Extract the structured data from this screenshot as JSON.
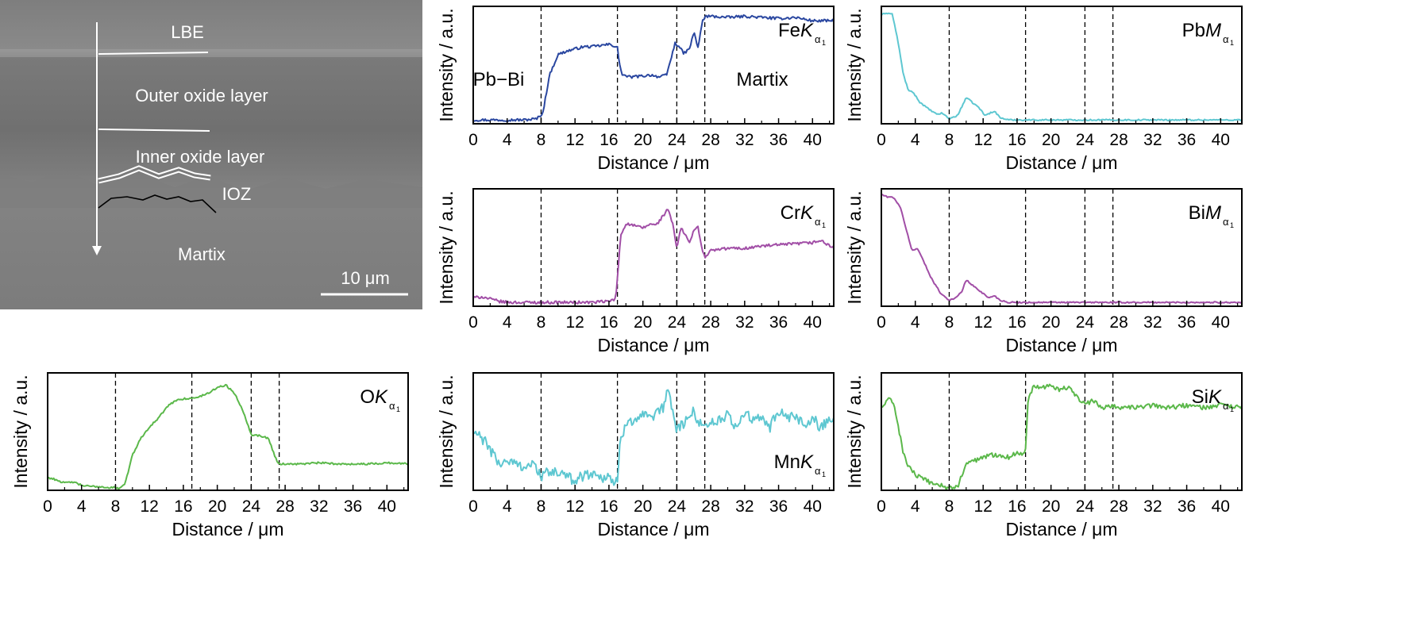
{
  "sem": {
    "labels": {
      "lbe": "LBE",
      "outer": "Outer oxide layer",
      "inner": "Inner oxide layer",
      "ioz": "IOZ",
      "matrix": "Martix"
    },
    "scalebar": "10 μm"
  },
  "colors": {
    "Fe": "#2a47a0",
    "Pb": "#5ec7d1",
    "Cr": "#a14ea6",
    "Bi": "#a14ea6",
    "O": "#5bb84a",
    "Mn": "#5ec7d1",
    "Si": "#5bb84a"
  },
  "chart_data": [
    {
      "id": "Fe",
      "type": "line",
      "label_el": "Fe",
      "label_k": "K",
      "label_sub": "α",
      "xlabel": "Distance / μm",
      "ylabel": "Intensity / a.u.",
      "xlim": [
        0,
        42.5
      ],
      "ylim": [
        0,
        1
      ],
      "xticks": [
        0,
        4,
        8,
        12,
        16,
        20,
        24,
        28,
        32,
        36,
        40
      ],
      "vlines": [
        8,
        17,
        24,
        27.3
      ],
      "annotations": [
        "Pb−Bi",
        "Martix"
      ],
      "x": [
        0,
        2,
        4,
        6,
        7.5,
        8.2,
        9,
        10,
        11,
        12,
        13,
        14,
        15,
        16,
        17,
        17.2,
        17.6,
        18.5,
        20,
        21,
        22,
        22.8,
        23.3,
        23.8,
        24.2,
        24.8,
        25.5,
        26,
        26.5,
        27,
        27.4,
        28,
        30,
        32,
        34,
        36,
        38,
        40,
        42
      ],
      "y": [
        0.02,
        0.02,
        0.02,
        0.02,
        0.03,
        0.08,
        0.42,
        0.6,
        0.63,
        0.65,
        0.67,
        0.67,
        0.68,
        0.69,
        0.67,
        0.52,
        0.42,
        0.4,
        0.41,
        0.42,
        0.4,
        0.42,
        0.56,
        0.7,
        0.68,
        0.61,
        0.65,
        0.8,
        0.66,
        0.89,
        0.94,
        0.94,
        0.93,
        0.94,
        0.93,
        0.92,
        0.93,
        0.9,
        0.9
      ],
      "noise": 0.012
    },
    {
      "id": "Pb",
      "type": "line",
      "label_el": "Pb",
      "label_k": "M",
      "label_sub": "α",
      "xlabel": "Distance / μm",
      "ylabel": "Intensity / a.u.",
      "xlim": [
        0,
        42.5
      ],
      "ylim": [
        0,
        1
      ],
      "xticks": [
        0,
        4,
        8,
        12,
        16,
        20,
        24,
        28,
        32,
        36,
        40
      ],
      "vlines": [
        8,
        17,
        24,
        27.3
      ],
      "annotations": [],
      "x": [
        0,
        0.5,
        1.3,
        2,
        2.6,
        3.2,
        3.8,
        4.5,
        5.5,
        6.5,
        7.2,
        8,
        9,
        10,
        10.8,
        11.5,
        12.2,
        12.8,
        13.3,
        14,
        15,
        17,
        20,
        24,
        28,
        32,
        36,
        40,
        42.5
      ],
      "y": [
        0.95,
        0.97,
        0.96,
        0.7,
        0.42,
        0.28,
        0.26,
        0.18,
        0.12,
        0.07,
        0.08,
        0.03,
        0.06,
        0.22,
        0.17,
        0.13,
        0.06,
        0.08,
        0.1,
        0.04,
        0.02,
        0.02,
        0.02,
        0.02,
        0.02,
        0.02,
        0.02,
        0.02,
        0.02
      ],
      "noise": 0.006
    },
    {
      "id": "Cr",
      "type": "line",
      "label_el": "Cr",
      "label_k": "K",
      "label_sub": "α",
      "xlabel": "Distance / μm",
      "ylabel": "Intensity / a.u.",
      "xlim": [
        0,
        42.5
      ],
      "ylim": [
        0,
        1
      ],
      "xticks": [
        0,
        4,
        8,
        12,
        16,
        20,
        24,
        28,
        32,
        36,
        40
      ],
      "vlines": [
        8,
        17,
        24,
        27.3
      ],
      "annotations": [],
      "x": [
        0,
        1,
        2,
        3,
        4,
        6,
        8,
        10,
        12,
        14,
        16,
        16.8,
        17.4,
        18,
        19,
        20,
        21,
        21.5,
        22,
        22.5,
        23,
        23.5,
        24,
        24.5,
        25,
        25.5,
        26,
        26.5,
        27,
        27.3,
        28,
        30,
        32,
        34,
        36,
        38,
        40,
        41,
        42
      ],
      "y": [
        0.06,
        0.07,
        0.05,
        0.03,
        0.02,
        0.02,
        0.02,
        0.02,
        0.02,
        0.02,
        0.03,
        0.05,
        0.62,
        0.72,
        0.7,
        0.68,
        0.72,
        0.7,
        0.75,
        0.8,
        0.85,
        0.72,
        0.5,
        0.68,
        0.62,
        0.55,
        0.65,
        0.7,
        0.48,
        0.42,
        0.48,
        0.5,
        0.5,
        0.52,
        0.53,
        0.54,
        0.55,
        0.57,
        0.52
      ],
      "noise": 0.013
    },
    {
      "id": "Bi",
      "type": "line",
      "label_el": "Bi",
      "label_k": "M",
      "label_sub": "α",
      "xlabel": "Distance / μm",
      "ylabel": "Intensity / a.u.",
      "xlim": [
        0,
        42.5
      ],
      "ylim": [
        0,
        1
      ],
      "xticks": [
        0,
        4,
        8,
        12,
        16,
        20,
        24,
        28,
        32,
        36,
        40
      ],
      "vlines": [
        8,
        17,
        24,
        27.3
      ],
      "annotations": [],
      "x": [
        0,
        0.5,
        1.5,
        2.3,
        3,
        3.6,
        4.3,
        5,
        6,
        7,
        8,
        8.8,
        9.5,
        10,
        10.6,
        11.3,
        12,
        12.6,
        13.3,
        14,
        15,
        17,
        20,
        24,
        28,
        32,
        36,
        40,
        42.5
      ],
      "y": [
        0.98,
        0.96,
        0.95,
        0.85,
        0.65,
        0.48,
        0.5,
        0.38,
        0.22,
        0.1,
        0.04,
        0.06,
        0.12,
        0.22,
        0.18,
        0.14,
        0.1,
        0.06,
        0.08,
        0.04,
        0.02,
        0.02,
        0.02,
        0.02,
        0.02,
        0.02,
        0.02,
        0.02,
        0.02
      ],
      "noise": 0.006
    },
    {
      "id": "O",
      "type": "line",
      "label_el": "O",
      "label_k": "K",
      "label_sub": "α",
      "xlabel": "Distance / μm",
      "ylabel": "Intensity / a.u.",
      "xlim": [
        0,
        42.5
      ],
      "ylim": [
        0,
        1
      ],
      "xticks": [
        0,
        4,
        8,
        12,
        16,
        20,
        24,
        28,
        32,
        36,
        40
      ],
      "vlines": [
        8,
        17,
        24,
        27.3
      ],
      "annotations": [],
      "x": [
        0,
        1,
        2,
        3,
        4,
        5,
        6,
        7,
        8,
        8.5,
        9,
        9.5,
        10,
        11,
        12,
        13,
        14,
        15,
        16,
        17,
        18,
        19,
        20,
        21,
        22,
        23,
        23.7,
        24,
        25,
        26,
        26.5,
        27,
        27.3,
        28,
        30,
        32,
        34,
        36,
        38,
        40,
        42.5
      ],
      "y": [
        0.1,
        0.08,
        0.05,
        0.06,
        0.03,
        0.02,
        0.02,
        0.01,
        0.01,
        0.0,
        0.03,
        0.15,
        0.3,
        0.45,
        0.55,
        0.62,
        0.72,
        0.78,
        0.8,
        0.8,
        0.82,
        0.85,
        0.9,
        0.92,
        0.85,
        0.7,
        0.55,
        0.48,
        0.47,
        0.45,
        0.35,
        0.25,
        0.22,
        0.22,
        0.22,
        0.23,
        0.22,
        0.22,
        0.22,
        0.23,
        0.22
      ],
      "noise": 0.008
    },
    {
      "id": "Mn",
      "type": "line",
      "label_el": "Mn",
      "label_k": "K",
      "label_sub": "α",
      "xlabel": "Distance / μm",
      "ylabel": "Intensity / a.u.",
      "xlim": [
        0,
        42.5
      ],
      "ylim": [
        0,
        1
      ],
      "xticks": [
        0,
        4,
        8,
        12,
        16,
        20,
        24,
        28,
        32,
        36,
        40
      ],
      "vlines": [
        8,
        17,
        24,
        27.3
      ],
      "annotations": [],
      "x": [
        0,
        1,
        2,
        3,
        4,
        5,
        6,
        7,
        8,
        9,
        10,
        11,
        12,
        13,
        14,
        15,
        16,
        16.5,
        17,
        17.3,
        18,
        19,
        20,
        21,
        22,
        22.5,
        23,
        23.5,
        24,
        25,
        26,
        27,
        28,
        29,
        30,
        31,
        32,
        33,
        34,
        35,
        36,
        37,
        38,
        39,
        40,
        41,
        42
      ],
      "y": [
        0.5,
        0.45,
        0.35,
        0.22,
        0.25,
        0.22,
        0.2,
        0.22,
        0.12,
        0.14,
        0.15,
        0.1,
        0.08,
        0.12,
        0.14,
        0.1,
        0.12,
        0.06,
        0.05,
        0.38,
        0.6,
        0.62,
        0.65,
        0.6,
        0.7,
        0.72,
        0.9,
        0.7,
        0.52,
        0.6,
        0.68,
        0.55,
        0.6,
        0.6,
        0.65,
        0.55,
        0.68,
        0.6,
        0.62,
        0.55,
        0.7,
        0.6,
        0.65,
        0.55,
        0.62,
        0.55,
        0.62
      ],
      "noise": 0.05
    },
    {
      "id": "Si",
      "type": "line",
      "label_el": "Si",
      "label_k": "K",
      "label_sub": "α",
      "xlabel": "Distance / μm",
      "ylabel": "Intensity / a.u.",
      "xlim": [
        0,
        42.5
      ],
      "ylim": [
        0,
        1
      ],
      "xticks": [
        0,
        4,
        8,
        12,
        16,
        20,
        24,
        28,
        32,
        36,
        40
      ],
      "vlines": [
        8,
        17,
        24,
        27.3
      ],
      "annotations": [],
      "x": [
        0,
        0.5,
        1,
        1.5,
        2,
        2.5,
        3,
        3.5,
        4,
        5,
        6,
        7,
        8,
        8.3,
        9,
        9.5,
        10,
        11,
        12,
        13,
        14,
        15,
        16,
        16.5,
        17,
        17.3,
        18,
        19,
        20,
        21,
        22,
        23,
        24,
        25,
        26,
        27,
        28,
        30,
        32,
        34,
        36,
        38,
        40,
        42.5
      ],
      "y": [
        0.72,
        0.76,
        0.8,
        0.75,
        0.55,
        0.35,
        0.22,
        0.18,
        0.12,
        0.08,
        0.05,
        0.03,
        0.0,
        0.01,
        0.02,
        0.12,
        0.22,
        0.25,
        0.28,
        0.3,
        0.3,
        0.28,
        0.32,
        0.3,
        0.35,
        0.8,
        0.92,
        0.9,
        0.92,
        0.88,
        0.9,
        0.82,
        0.75,
        0.78,
        0.72,
        0.74,
        0.72,
        0.72,
        0.74,
        0.72,
        0.74,
        0.72,
        0.74,
        0.72
      ],
      "noise": 0.02
    }
  ]
}
